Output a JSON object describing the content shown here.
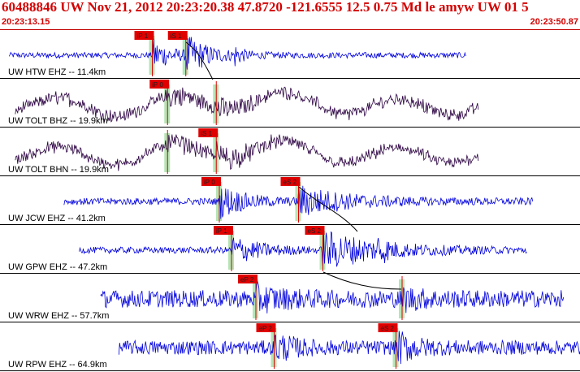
{
  "header": {
    "title": "60488846 UW Nov 21, 2012 20:23:20.38    47.8720 -121.6555 12.5 0.75 Md le amyw UW 01   5",
    "start_time": "20:23:13.15",
    "end_time": "20:23:50.87"
  },
  "colors": {
    "header_text": "#d40000",
    "trace_ehz": "#0000dd",
    "trace_bh": "#2a0040",
    "pick_box": "#e00000",
    "pick_window": "#a8e0a8",
    "divider": "#000000"
  },
  "traces": [
    {
      "label": "UW HTW EHZ -- 11.4km",
      "color_key": "trace_ehz",
      "start": 0.3,
      "end": 15.3,
      "amp": 0.18,
      "wave": "noise",
      "picks": [
        {
          "label": "iP 1",
          "t": 5.0
        },
        {
          "label": "iS 1",
          "t": 6.1
        }
      ],
      "events": [
        {
          "t": 5.0,
          "width": 0.6,
          "amp": 1.0
        },
        {
          "t": 6.1,
          "width": 0.8,
          "amp": 1.1
        },
        {
          "t": 7.7,
          "width": 0.2,
          "amp": 0.6
        }
      ]
    },
    {
      "label": "UW TOLT BHZ -- 19.9km",
      "color_key": "trace_bh",
      "start": 0.5,
      "end": 15.7,
      "amp": 0.5,
      "wave": "swell",
      "picks": [
        {
          "label": "iP 0",
          "t": 5.5
        },
        {
          "label": "",
          "t": 7.1
        }
      ],
      "events": [
        {
          "t": 5.5,
          "width": 0.7,
          "amp": 0.9
        },
        {
          "t": 7.1,
          "width": 0.6,
          "amp": 0.7
        }
      ]
    },
    {
      "label": "UW TOLT BHN -- 19.9km",
      "color_key": "trace_bh",
      "start": 0.5,
      "end": 15.7,
      "amp": 0.45,
      "wave": "swell",
      "picks": [
        {
          "label": "",
          "t": 5.5
        },
        {
          "label": "iS 1",
          "t": 7.1
        }
      ],
      "events": [
        {
          "t": 5.5,
          "width": 0.6,
          "amp": 0.8
        },
        {
          "t": 7.1,
          "width": 1.0,
          "amp": 1.0
        }
      ]
    },
    {
      "label": "UW JCW EHZ -- 41.2km",
      "color_key": "trace_ehz",
      "start": 2.1,
      "end": 17.5,
      "amp": 0.22,
      "wave": "noise",
      "picks": [
        {
          "label": "iP 0",
          "t": 7.2
        },
        {
          "label": "eS 2",
          "t": 9.8
        }
      ],
      "events": [
        {
          "t": 7.2,
          "width": 0.8,
          "amp": 1.0
        },
        {
          "t": 9.8,
          "width": 1.6,
          "amp": 0.9
        }
      ]
    },
    {
      "label": "UW GPW EHZ -- 47.2km",
      "color_key": "trace_ehz",
      "start": 2.6,
      "end": 17.3,
      "amp": 0.2,
      "wave": "noise",
      "picks": [
        {
          "label": "iP 1",
          "t": 7.6
        },
        {
          "label": "eS 2",
          "t": 10.6
        }
      ],
      "events": [
        {
          "t": 7.6,
          "width": 0.9,
          "amp": 0.9
        },
        {
          "t": 10.6,
          "width": 1.8,
          "amp": 1.2
        },
        {
          "t": 12.4,
          "width": 0.2,
          "amp": 0.8
        }
      ]
    },
    {
      "label": "UW WRW EHZ -- 57.7km",
      "color_key": "trace_ehz",
      "start": 3.3,
      "end": 18.5,
      "amp": 0.55,
      "wave": "noise",
      "picks": [
        {
          "label": "eP 2",
          "t": 8.4
        },
        {
          "label": "",
          "t": 13.2
        }
      ],
      "events": [
        {
          "t": 8.4,
          "width": 0.8,
          "amp": 0.6
        },
        {
          "t": 13.2,
          "width": 0.6,
          "amp": 0.5
        }
      ]
    },
    {
      "label": "UW RPW EHZ -- 64.9km",
      "color_key": "trace_ehz",
      "start": 3.9,
      "end": 19.1,
      "amp": 0.45,
      "wave": "noise",
      "picks": [
        {
          "label": "eP 2",
          "t": 9.0
        },
        {
          "label": "eS 2",
          "t": 13.0
        }
      ],
      "events": [
        {
          "t": 9.0,
          "width": 0.6,
          "amp": 0.8
        },
        {
          "t": 13.0,
          "width": 0.6,
          "amp": 0.9
        }
      ]
    }
  ]
}
